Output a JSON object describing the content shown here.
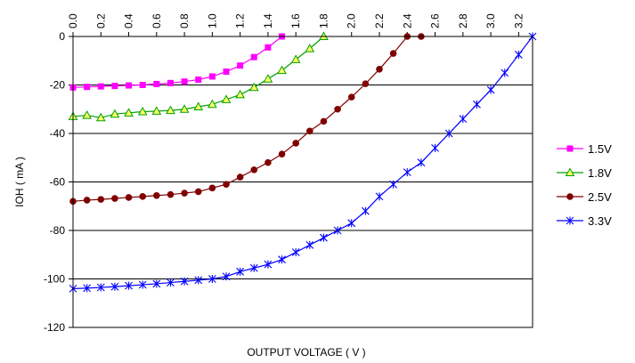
{
  "chart_data": {
    "type": "line",
    "xlabel": "OUTPUT VOLTAGE ( V )",
    "ylabel": "IOH ( mA )",
    "x_ticks": [
      "0.0",
      "0.2",
      "0.4",
      "0.6",
      "0.8",
      "1.0",
      "1.2",
      "1.4",
      "1.6",
      "1.8",
      "2.0",
      "2.2",
      "2.4",
      "2.6",
      "2.8",
      "3.0",
      "3.2"
    ],
    "y_ticks": [
      "0",
      "-20",
      "-40",
      "-60",
      "-80",
      "-100",
      "-120"
    ],
    "xlim": [
      0,
      3.3
    ],
    "ylim": [
      -120,
      0
    ],
    "grid": "horizontal",
    "x_axis_position": "top",
    "legend_position": "right",
    "series": [
      {
        "name": "1.5V",
        "color": "#ff00ff",
        "marker": "square",
        "x": [
          0.0,
          0.1,
          0.2,
          0.3,
          0.4,
          0.5,
          0.6,
          0.7,
          0.8,
          0.9,
          1.0,
          1.1,
          1.2,
          1.3,
          1.4,
          1.5
        ],
        "y": [
          -21,
          -20.8,
          -20.6,
          -20.4,
          -20.2,
          -20,
          -19.6,
          -19.2,
          -18.6,
          -17.8,
          -16.5,
          -14.5,
          -12,
          -8.5,
          -4.5,
          0
        ]
      },
      {
        "name": "1.8V",
        "color": "#00a000",
        "marker": "triangle",
        "x": [
          0.0,
          0.1,
          0.2,
          0.3,
          0.4,
          0.5,
          0.6,
          0.7,
          0.8,
          0.9,
          1.0,
          1.1,
          1.2,
          1.3,
          1.4,
          1.5,
          1.6,
          1.7,
          1.8
        ],
        "y": [
          -33,
          -32.5,
          -33.5,
          -32,
          -31.5,
          -31,
          -30.8,
          -30.5,
          -30,
          -29,
          -28,
          -26,
          -24,
          -21,
          -17.5,
          -14,
          -9.5,
          -5,
          0
        ]
      },
      {
        "name": "2.5V",
        "color": "#800000",
        "marker": "circle",
        "x": [
          0.0,
          0.1,
          0.2,
          0.3,
          0.4,
          0.5,
          0.6,
          0.7,
          0.8,
          0.9,
          1.0,
          1.1,
          1.2,
          1.3,
          1.4,
          1.5,
          1.6,
          1.7,
          1.8,
          1.9,
          2.0,
          2.1,
          2.2,
          2.3,
          2.4,
          2.5
        ],
        "y": [
          -68,
          -67.5,
          -67.2,
          -66.8,
          -66.4,
          -66,
          -65.6,
          -65.2,
          -64.6,
          -64,
          -62.5,
          -61,
          -58,
          -55,
          -52,
          -48.5,
          -44,
          -39,
          -35,
          -30,
          -25,
          -19.5,
          -13.5,
          -7,
          0,
          0
        ]
      },
      {
        "name": "3.3V",
        "color": "#0000ff",
        "marker": "star",
        "x": [
          0.0,
          0.1,
          0.2,
          0.3,
          0.4,
          0.5,
          0.6,
          0.7,
          0.8,
          0.9,
          1.0,
          1.1,
          1.2,
          1.3,
          1.4,
          1.5,
          1.6,
          1.7,
          1.8,
          1.9,
          2.0,
          2.1,
          2.2,
          2.3,
          2.4,
          2.5,
          2.6,
          2.7,
          2.8,
          2.9,
          3.0,
          3.1,
          3.2,
          3.3
        ],
        "y": [
          -104,
          -103.8,
          -103.5,
          -103.2,
          -102.8,
          -102.4,
          -102,
          -101.5,
          -101,
          -100.5,
          -100,
          -99,
          -97,
          -95.5,
          -94,
          -92,
          -89,
          -86,
          -83,
          -80,
          -77,
          -72,
          -66,
          -61,
          -56,
          -52,
          -46,
          -40,
          -34,
          -28,
          -22,
          -15,
          -7.5,
          0
        ]
      }
    ]
  }
}
